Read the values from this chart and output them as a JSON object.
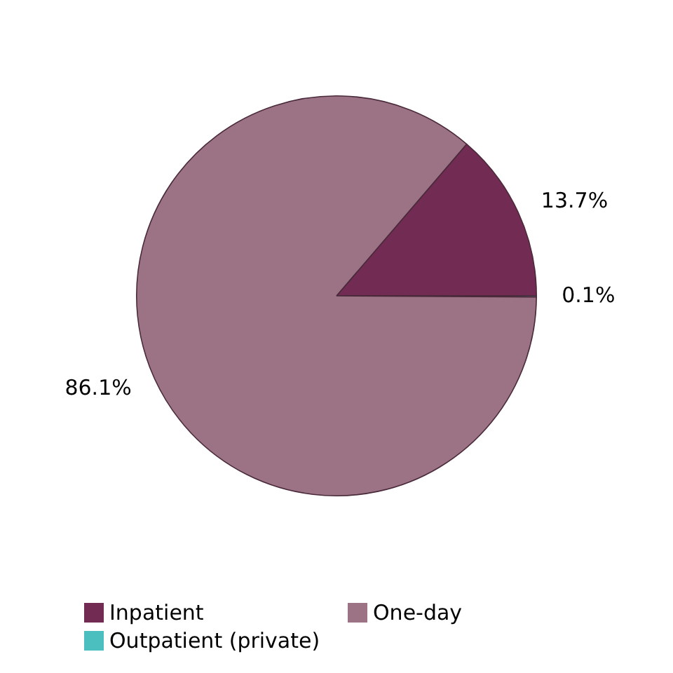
{
  "chart_data": {
    "type": "pie",
    "categories": [
      "Inpatient",
      "Outpatient (private)",
      "One-day"
    ],
    "values": [
      13.7,
      0.1,
      86.1
    ],
    "colors": [
      "#722b52",
      "#4bbfbf",
      "#9b7385"
    ],
    "value_labels": [
      "13.7%",
      "0.1%",
      "86.1%"
    ],
    "legend": "bottom"
  }
}
